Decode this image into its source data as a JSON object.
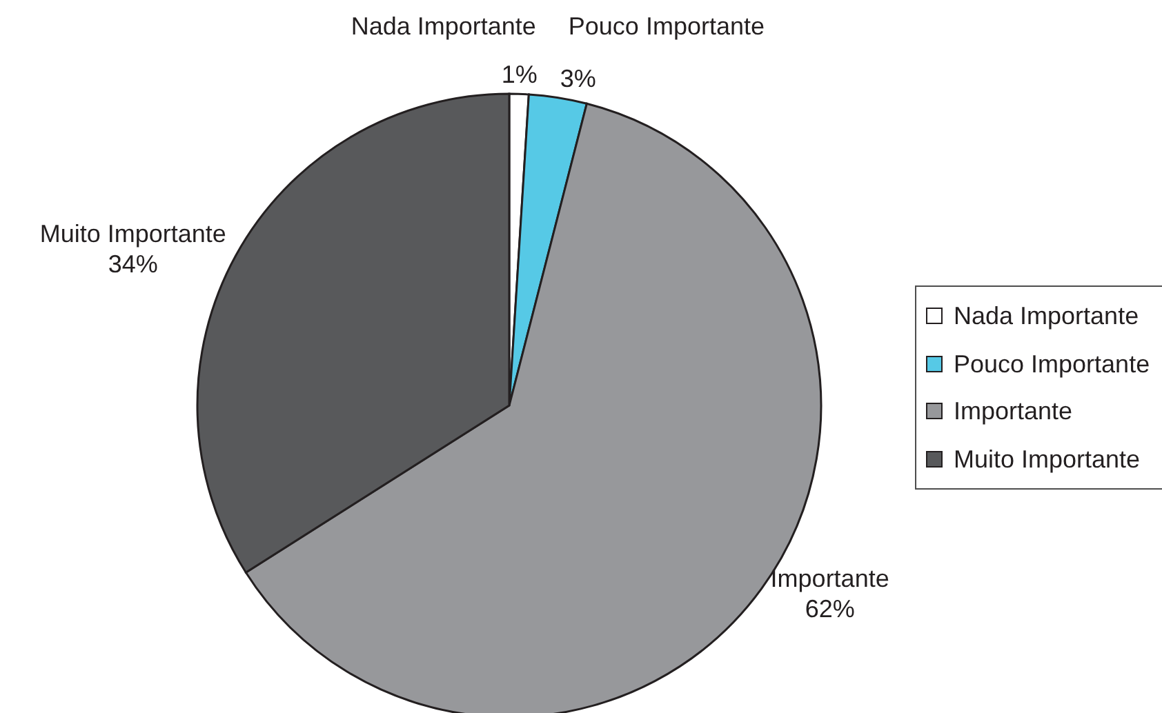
{
  "chart_data": {
    "type": "pie",
    "categories": [
      "Nada Importante",
      "Pouco Importante",
      "Importante",
      "Muito Importante"
    ],
    "values": [
      1,
      3,
      62,
      34
    ],
    "value_labels": [
      "1%",
      "3%",
      "62%",
      "34%"
    ],
    "colors": [
      "#ffffff",
      "#56c9e6",
      "#97989b",
      "#58595b"
    ],
    "legend": "right"
  }
}
